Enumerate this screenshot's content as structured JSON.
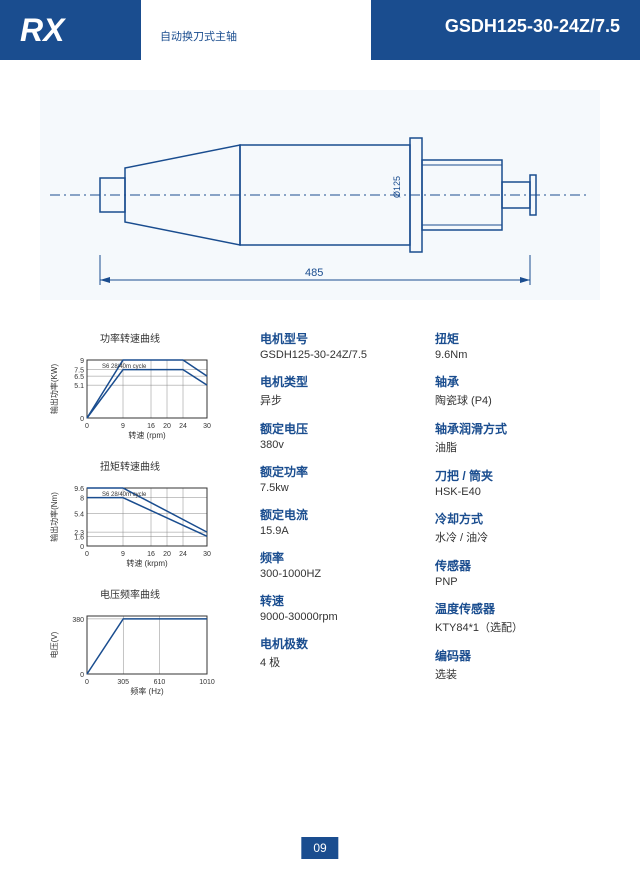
{
  "header": {
    "logo": "RX",
    "subtitle": "自动换刀式主轴",
    "model": "GSDH125-30-24Z/7.5"
  },
  "diagram": {
    "length_label": "485",
    "diameter_label": "Ø125",
    "outline_color": "#1a4d8f",
    "centerline_color": "#1a4d8f",
    "dim_color": "#1a4d8f"
  },
  "charts": [
    {
      "title": "功率转速曲线",
      "xlabel": "转速 (rpm)",
      "ylabel": "输出功率(KW)",
      "annotation": "S6 28/40m cycle",
      "xlim": [
        0,
        30
      ],
      "xticks": [
        0,
        9,
        16,
        20,
        24,
        30
      ],
      "ylim": [
        0,
        9.0
      ],
      "yticks": [
        0,
        5.1,
        6.5,
        7.5,
        9.0
      ],
      "series": [
        [
          0,
          0
        ],
        [
          9,
          9.0
        ],
        [
          24,
          9.0
        ],
        [
          30,
          6.5
        ]
      ],
      "series2": [
        [
          0,
          0
        ],
        [
          9,
          7.5
        ],
        [
          24,
          7.5
        ],
        [
          30,
          5.1
        ]
      ],
      "color": "#1a4d8f",
      "width": 170,
      "height": 90
    },
    {
      "title": "扭矩转速曲线",
      "xlabel": "转速 (krpm)",
      "ylabel": "输出功率(Nm)",
      "annotation": "S6 28/40m cycle",
      "xlim": [
        0,
        30
      ],
      "xticks": [
        0,
        9,
        16,
        20,
        24,
        30
      ],
      "ylim": [
        0,
        9.6
      ],
      "yticks": [
        0,
        1.6,
        2.3,
        5.4,
        8.0,
        9.6
      ],
      "series": [
        [
          0,
          9.6
        ],
        [
          9,
          9.6
        ],
        [
          30,
          2.3
        ]
      ],
      "series2": [
        [
          0,
          8.0
        ],
        [
          9,
          8.0
        ],
        [
          30,
          1.6
        ]
      ],
      "color": "#1a4d8f",
      "width": 170,
      "height": 90
    },
    {
      "title": "电压频率曲线",
      "xlabel": "频率 (Hz)",
      "ylabel": "电压(V)",
      "xlim": [
        0,
        1010
      ],
      "xticks": [
        0,
        305,
        610,
        1010
      ],
      "ylim": [
        0,
        400
      ],
      "yticks": [
        0,
        380
      ],
      "series": [
        [
          0,
          0
        ],
        [
          305,
          380
        ],
        [
          1010,
          380
        ]
      ],
      "color": "#1a4d8f",
      "width": 170,
      "height": 90
    }
  ],
  "specs": {
    "left": [
      {
        "label": "电机型号",
        "value": "GSDH125-30-24Z/7.5"
      },
      {
        "label": "电机类型",
        "value": "异步"
      },
      {
        "label": "额定电压",
        "value": "380v"
      },
      {
        "label": "额定功率",
        "value": "7.5kw"
      },
      {
        "label": "额定电流",
        "value": "15.9A"
      },
      {
        "label": "频率",
        "value": "300-1000HZ"
      },
      {
        "label": "转速",
        "value": "9000-30000rpm"
      },
      {
        "label": "电机极数",
        "value": "4 极"
      }
    ],
    "right": [
      {
        "label": "扭矩",
        "value": "9.6Nm"
      },
      {
        "label": "轴承",
        "value": "陶瓷球 (P4)"
      },
      {
        "label": "轴承润滑方式",
        "value": "油脂"
      },
      {
        "label": "刀把 / 筒夹",
        "value": "HSK-E40"
      },
      {
        "label": "冷却方式",
        "value": "水冷 / 油冷"
      },
      {
        "label": "传感器",
        "value": "PNP"
      },
      {
        "label": "温度传感器",
        "value": "KTY84*1（选配）"
      },
      {
        "label": "编码器",
        "value": "选装"
      }
    ]
  },
  "page": "09"
}
